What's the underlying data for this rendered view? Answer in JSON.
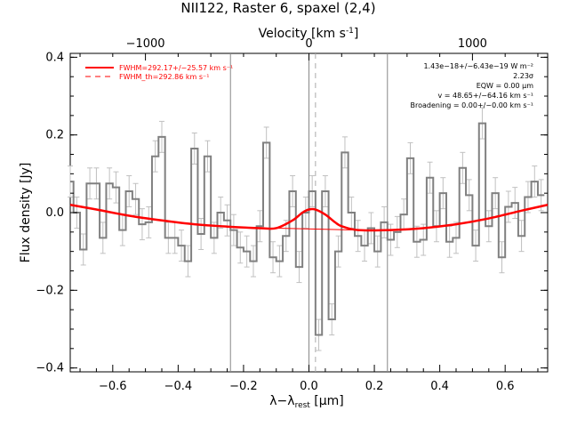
{
  "chart_data": {
    "type": "line",
    "title": "NII122, Raster 6, spaxel (2,4)",
    "xlabel": "λ−λ",
    "xlabel_sub": "rest",
    "xlabel_unit": " [μm]",
    "ylabel": "Flux density [Jy]",
    "top_axis_label": "Velocity [km s",
    "top_axis_label_sup": "-1",
    "top_axis_label_end": "]",
    "xlim": [
      -0.73,
      0.73
    ],
    "ylim": [
      -0.41,
      0.41
    ],
    "xticks": [
      -0.6,
      -0.4,
      -0.2,
      0.0,
      0.2,
      0.4,
      0.6
    ],
    "xtick_labels": [
      "−0.6",
      "−0.4",
      "−0.2",
      "0.0",
      "0.2",
      "0.4",
      "0.6"
    ],
    "yticks": [
      -0.4,
      -0.2,
      0.0,
      0.2,
      0.4
    ],
    "ytick_labels": [
      "−0.4",
      "−0.2",
      "0.0",
      "0.2",
      "0.4"
    ],
    "top_ticks_um": [
      -0.5,
      0.0,
      0.5
    ],
    "top_tick_labels": [
      "−1000",
      "0",
      "1000"
    ],
    "vlines_solid": [
      -0.24,
      0.0,
      0.24
    ],
    "vline_dashed": 0.02,
    "spectrum": {
      "name": "data",
      "color": "#808080",
      "x": [
        -0.73,
        -0.71,
        -0.69,
        -0.67,
        -0.65,
        -0.63,
        -0.61,
        -0.59,
        -0.57,
        -0.55,
        -0.53,
        -0.51,
        -0.49,
        -0.47,
        -0.45,
        -0.43,
        -0.41,
        -0.39,
        -0.37,
        -0.35,
        -0.33,
        -0.31,
        -0.29,
        -0.27,
        -0.25,
        -0.23,
        -0.21,
        -0.19,
        -0.17,
        -0.15,
        -0.13,
        -0.11,
        -0.09,
        -0.07,
        -0.05,
        -0.03,
        -0.01,
        0.01,
        0.03,
        0.05,
        0.07,
        0.09,
        0.11,
        0.13,
        0.15,
        0.17,
        0.19,
        0.21,
        0.23,
        0.25,
        0.27,
        0.29,
        0.31,
        0.33,
        0.35,
        0.37,
        0.39,
        0.41,
        0.43,
        0.45,
        0.47,
        0.49,
        0.51,
        0.53,
        0.55,
        0.57,
        0.59,
        0.61,
        0.63,
        0.65,
        0.67,
        0.69,
        0.71
      ],
      "y": [
        0.08,
        0.0,
        -0.095,
        0.075,
        0.075,
        -0.065,
        0.075,
        0.065,
        -0.045,
        0.055,
        0.035,
        -0.03,
        -0.025,
        0.145,
        0.195,
        -0.065,
        -0.065,
        -0.085,
        -0.125,
        0.165,
        -0.055,
        0.145,
        -0.065,
        0.0,
        -0.02,
        -0.045,
        -0.09,
        -0.1,
        -0.125,
        -0.035,
        0.18,
        -0.115,
        -0.125,
        -0.06,
        0.055,
        -0.14,
        0.0,
        0.055,
        -0.315,
        0.055,
        -0.275,
        -0.1,
        0.155,
        0.0,
        -0.06,
        -0.085,
        -0.04,
        -0.1,
        -0.025,
        -0.07,
        -0.05,
        -0.005,
        0.14,
        -0.075,
        -0.07,
        0.09,
        -0.035,
        0.05,
        -0.075,
        -0.065,
        0.115,
        0.045,
        -0.085,
        0.23,
        -0.035,
        0.05,
        -0.115,
        0.015,
        0.025,
        -0.06,
        0.04,
        0.08,
        0.045
      ],
      "err": 0.04
    },
    "fit": {
      "name": "FWHM=292.17+/−25.57 km s⁻¹",
      "color": "#ff0000",
      "x": [
        -0.73,
        -0.65,
        -0.55,
        -0.45,
        -0.35,
        -0.25,
        -0.15,
        -0.1,
        -0.05,
        -0.02,
        0.0,
        0.02,
        0.05,
        0.08,
        0.1,
        0.15,
        0.25,
        0.35,
        0.45,
        0.55,
        0.65,
        0.73
      ],
      "y": [
        0.02,
        0.008,
        -0.008,
        -0.02,
        -0.03,
        -0.036,
        -0.04,
        -0.04,
        -0.02,
        0.0,
        0.008,
        0.008,
        -0.005,
        -0.025,
        -0.035,
        -0.045,
        -0.045,
        -0.04,
        -0.03,
        -0.015,
        0.005,
        0.02
      ]
    },
    "fit_th": {
      "name": "FWHM_th=292.86 km s⁻¹",
      "color": "#ff0000",
      "x": [
        -0.73,
        -0.65,
        -0.55,
        -0.45,
        -0.35,
        -0.25,
        -0.15,
        -0.1,
        -0.05,
        -0.02,
        0.0,
        0.02,
        0.05,
        0.08,
        0.1,
        0.15,
        0.25,
        0.35,
        0.45,
        0.55,
        0.65,
        0.73
      ],
      "y": [
        0.02,
        0.008,
        -0.008,
        -0.02,
        -0.03,
        -0.036,
        -0.04,
        -0.04,
        -0.02,
        0.0,
        0.008,
        0.008,
        -0.005,
        -0.025,
        -0.035,
        -0.045,
        -0.045,
        -0.04,
        -0.03,
        -0.015,
        0.005,
        0.02
      ]
    },
    "baseline": {
      "x": [
        -0.1,
        0.15
      ],
      "y": [
        -0.04,
        -0.045
      ]
    },
    "legend": {
      "placement": "top-left"
    },
    "annotations": [
      "1.43e−18+/−6.43e−19 W m⁻²",
      "2.23σ",
      "EQW = 0.00 μm",
      "v = 48.65+/−64.16 km s⁻¹",
      "Broadening = 0.00+/−0.00 km s⁻¹"
    ]
  }
}
